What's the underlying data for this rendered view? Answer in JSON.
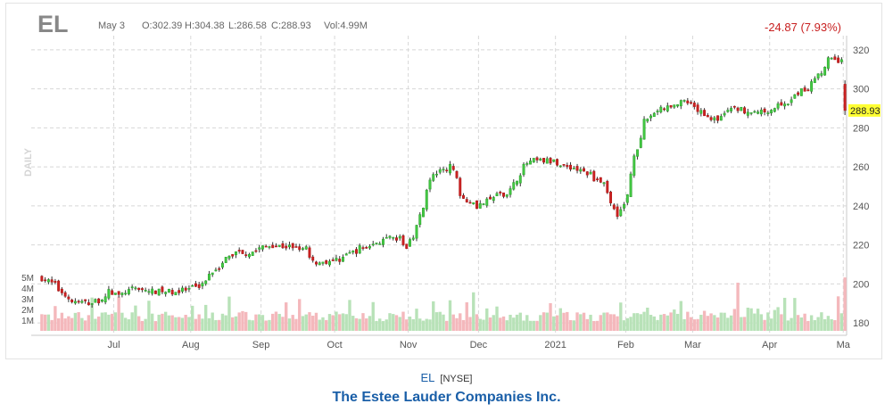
{
  "header": {
    "ticker": "EL",
    "date": "May 3",
    "open": "O:302.39",
    "high": "H:304.38",
    "low": "L:286.58",
    "close": "C:288.93",
    "volume": "Vol:4.99M",
    "change": "-24.87 (7.93%)",
    "last_price_label": "288.93",
    "period_label": "DAILY"
  },
  "caption": {
    "symbol": "EL",
    "exchange": "[NYSE]",
    "company": "The Estee Lauder Companies Inc."
  },
  "colors": {
    "up": "#2ea02e",
    "up_fill": "#44cc44",
    "down": "#b01818",
    "down_fill": "#cc2222",
    "vol_up": "#b8e2b8",
    "vol_down": "#f4b8bc",
    "change_text": "#c82020",
    "price_badge": "#ffff33",
    "grid": "#d8d8d8"
  },
  "chart_data": {
    "type": "candlestick",
    "price_axis": {
      "ticks": [
        180,
        200,
        220,
        240,
        260,
        280,
        300,
        320
      ],
      "ylim": [
        175,
        325
      ]
    },
    "volume_axis": {
      "ticks": [
        "1M",
        "2M",
        "3M",
        "4M",
        "5M"
      ],
      "tick_values": [
        1,
        2,
        3,
        4,
        5
      ],
      "unit": "M"
    },
    "x_labels": [
      "Jul",
      "Aug",
      "Sep",
      "Oct",
      "Nov",
      "Dec",
      "2021",
      "Feb",
      "Mar",
      "Apr",
      "Ma"
    ],
    "grid": true,
    "price_keyframes": [
      [
        "2020-06-01",
        203
      ],
      [
        "2020-06-09",
        196
      ],
      [
        "2020-06-12",
        191
      ],
      [
        "2020-06-22",
        190
      ],
      [
        "2020-06-29",
        196
      ],
      [
        "2020-07-02",
        194
      ],
      [
        "2020-07-10",
        198
      ],
      [
        "2020-07-16",
        196
      ],
      [
        "2020-07-27",
        196
      ],
      [
        "2020-08-04",
        198
      ],
      [
        "2020-08-12",
        208
      ],
      [
        "2020-08-21",
        217
      ],
      [
        "2020-08-26",
        216
      ],
      [
        "2020-09-04",
        220
      ],
      [
        "2020-09-11",
        219
      ],
      [
        "2020-09-18",
        219
      ],
      [
        "2020-09-23",
        211
      ],
      [
        "2020-10-01",
        212
      ],
      [
        "2020-10-09",
        217
      ],
      [
        "2020-10-16",
        220
      ],
      [
        "2020-10-23",
        223
      ],
      [
        "2020-10-28",
        223
      ],
      [
        "2020-10-30",
        218
      ],
      [
        "2020-11-03",
        225
      ],
      [
        "2020-11-06",
        239
      ],
      [
        "2020-11-11",
        256
      ],
      [
        "2020-11-18",
        260
      ],
      [
        "2020-11-24",
        244
      ],
      [
        "2020-11-30",
        240
      ],
      [
        "2020-12-07",
        245
      ],
      [
        "2020-12-14",
        248
      ],
      [
        "2020-12-18",
        260
      ],
      [
        "2020-12-23",
        263
      ],
      [
        "2020-12-29",
        263
      ],
      [
        "2021-01-04",
        261
      ],
      [
        "2021-01-12",
        258
      ],
      [
        "2021-01-20",
        253
      ],
      [
        "2021-01-27",
        236
      ],
      [
        "2021-02-01",
        246
      ],
      [
        "2021-02-03",
        267
      ],
      [
        "2021-02-08",
        283
      ],
      [
        "2021-02-12",
        289
      ],
      [
        "2021-02-16",
        290
      ],
      [
        "2021-02-24",
        293
      ],
      [
        "2021-03-03",
        288
      ],
      [
        "2021-03-09",
        284
      ],
      [
        "2021-03-16",
        290
      ],
      [
        "2021-03-22",
        289
      ],
      [
        "2021-03-29",
        288
      ],
      [
        "2021-04-05",
        292
      ],
      [
        "2021-04-09",
        293
      ],
      [
        "2021-04-13",
        298
      ],
      [
        "2021-04-16",
        300
      ],
      [
        "2021-04-22",
        309
      ],
      [
        "2021-04-26",
        315
      ],
      [
        "2021-04-30",
        314
      ],
      [
        "2021-05-03",
        288.93
      ]
    ],
    "last_bar": {
      "date": "2021-05-03",
      "open": 302.39,
      "high": 304.38,
      "low": 286.58,
      "close": 288.93,
      "volume_m": 4.99
    }
  }
}
